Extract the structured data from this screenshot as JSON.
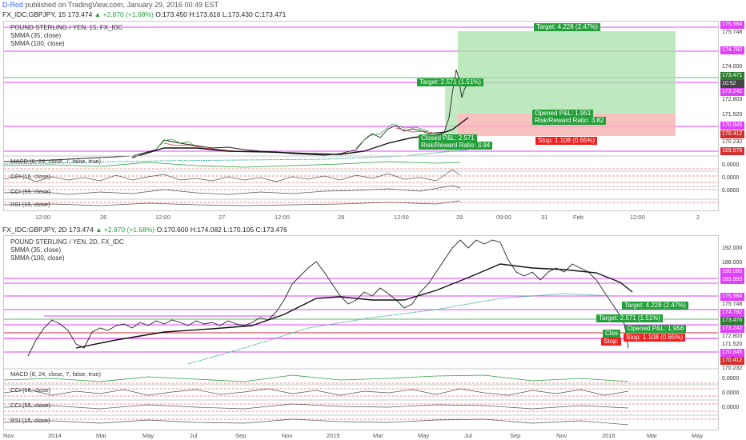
{
  "header": {
    "author": "D-Rod",
    "published": "published on TradingView.com, January 29, 2016 00:49 EST"
  },
  "top": {
    "symbol": "FX_IDC:GBPJPY, 15",
    "last": "173.474",
    "change": "+2.870 (+1.68%)",
    "ohlc": {
      "o": "O:173.450",
      "h": "H:173.616",
      "l": "L:173.430",
      "c": "C:173.471"
    },
    "legend": [
      "POUND STERLING / YEN, 15, FX_IDC",
      "SMMA (35, close)",
      "SMMA (100, close)"
    ],
    "indicators": [
      {
        "name": "MACD (8, 24, close, 7, false, true)",
        "zero": "0.0000"
      },
      {
        "name": "CCI (16, close)",
        "zero": "0.0000"
      },
      {
        "name": "CCI (55, close)",
        "zero": "0.0000"
      },
      {
        "name": "RSI (15, close)",
        "zero": ""
      }
    ],
    "price_tags": [
      {
        "v": "175.984",
        "c": "mag"
      },
      {
        "v": "175.748",
        "c": "grey"
      },
      {
        "v": "174.782",
        "c": "mag"
      },
      {
        "v": "174.000",
        "c": "grey"
      },
      {
        "v": "173.471",
        "c": "green"
      },
      {
        "v": "10:52",
        "c": "dark"
      },
      {
        "v": "173.242",
        "c": "mag"
      },
      {
        "v": "172.803",
        "c": "grey"
      },
      {
        "v": "171.520",
        "c": "grey"
      },
      {
        "v": "170.845",
        "c": "mag"
      },
      {
        "v": "170.412",
        "c": "red"
      },
      {
        "v": "170.232",
        "c": "grey"
      },
      {
        "v": "169.579",
        "c": "red"
      }
    ],
    "xlabels": [
      "12:00",
      "26",
      "12:00",
      "27",
      "12:00",
      "28",
      "12:00",
      "29",
      "09:00",
      "31",
      "Feb",
      "12:00",
      "2"
    ],
    "annotations": [
      {
        "text": "Target: 4.228 (2.47%)",
        "c": "g"
      },
      {
        "text": "Target: 2.571 (1.51%)",
        "c": "g"
      },
      {
        "text": "Opened P&L: 1.951",
        "c": "g"
      },
      {
        "text": "Risk/Reward Ratio: 3.82",
        "c": "g"
      },
      {
        "text": "Closed P&L: 2.571",
        "c": "g"
      },
      {
        "text": "Risk/Reward Ratio: 3.94",
        "c": "g"
      },
      {
        "text": "Stop: 1.108 (0.65%)",
        "c": "r"
      }
    ]
  },
  "bottom": {
    "symbol": "FX_IDC:GBPJPY, 2D",
    "last": "173.474",
    "change": "+2.870 (+1.68%)",
    "ohlc": {
      "o": "O:170.600",
      "h": "H:174.082",
      "l": "L:170.105",
      "c": "C:173.476"
    },
    "legend": [
      "POUND STERLING / YEN, 2D, FX_IDC",
      "SMMA (35, close)",
      "SMMA (100, close)"
    ],
    "indicators": [
      {
        "name": "MACD (8, 24, close, 7, false, true)",
        "zero": "0.0000"
      },
      {
        "name": "CCI (16, close)",
        "zero": "0.0000"
      },
      {
        "name": "CCI (55, close)",
        "zero": "0.0000"
      },
      {
        "name": "RSI (15, close)",
        "zero": ""
      }
    ],
    "price_tags": [
      {
        "v": "192.000",
        "c": "grey"
      },
      {
        "v": "188.000",
        "c": "grey"
      },
      {
        "v": "186.080",
        "c": "mag"
      },
      {
        "v": "183.993",
        "c": "mag"
      },
      {
        "v": "175.984",
        "c": "mag"
      },
      {
        "v": "175.748",
        "c": "grey"
      },
      {
        "v": "174.782",
        "c": "mag"
      },
      {
        "v": "173.476",
        "c": "green"
      },
      {
        "v": "173.242",
        "c": "mag"
      },
      {
        "v": "172.803",
        "c": "grey"
      },
      {
        "v": "171.520",
        "c": "grey"
      },
      {
        "v": "170.845",
        "c": "mag"
      },
      {
        "v": "170.412",
        "c": "red"
      },
      {
        "v": "170.232",
        "c": "grey"
      }
    ],
    "xlabels": [
      "Nov",
      "2014",
      "Mar",
      "May",
      "Jul",
      "Sep",
      "Nov",
      "2015",
      "Mar",
      "May",
      "Jul",
      "Sep",
      "Nov",
      "2016",
      "Mar",
      "May"
    ],
    "annotations": [
      {
        "text": "Target: 4.228 (2.47%)",
        "c": "g"
      },
      {
        "text": "Target: 2.571 (1.51%)",
        "c": "g"
      },
      {
        "text": "Opened P&L: 1.956",
        "c": "g"
      },
      {
        "text": "Stop: 1.108 (0.65%)",
        "c": "r"
      },
      {
        "text": "Clos",
        "c": "g"
      },
      {
        "text": "Stop:",
        "c": "r"
      }
    ]
  },
  "colors": {
    "green": "#23a03a",
    "red": "#ef1f1f",
    "magenta": "#e040fb",
    "smma": "#111111",
    "smma100": "#3cb0a0"
  }
}
